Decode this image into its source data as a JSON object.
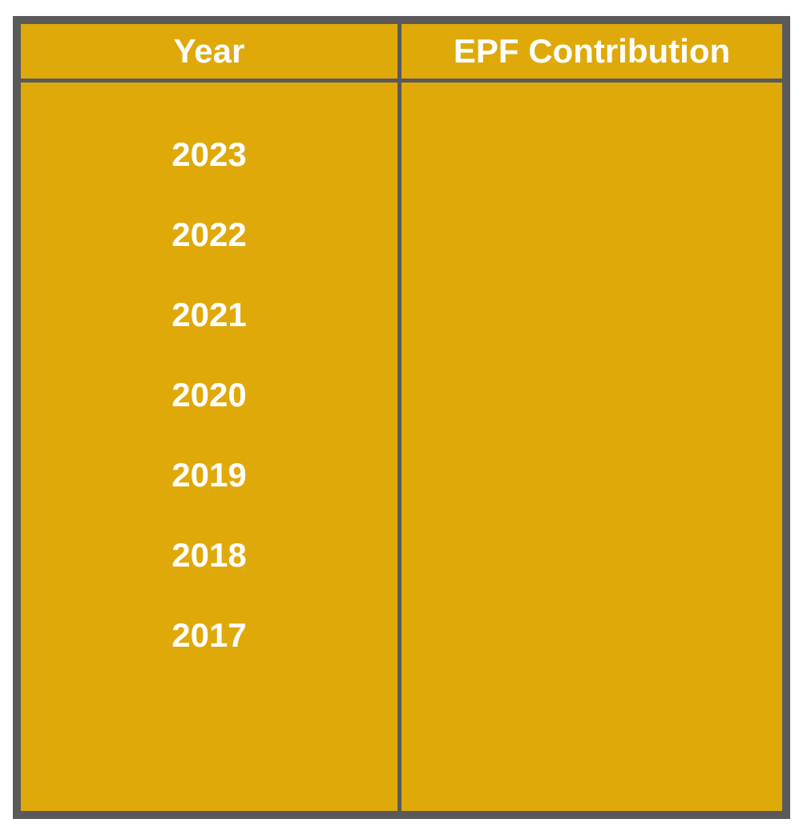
{
  "table": {
    "headers": {
      "year": "Year",
      "epf_contribution": "EPF Contribution"
    },
    "rows": [
      {
        "year": "2023",
        "epf_contribution": ""
      },
      {
        "year": "2022",
        "epf_contribution": ""
      },
      {
        "year": "2021",
        "epf_contribution": ""
      },
      {
        "year": "2020",
        "epf_contribution": ""
      },
      {
        "year": "2019",
        "epf_contribution": ""
      },
      {
        "year": "2018",
        "epf_contribution": ""
      },
      {
        "year": "2017",
        "epf_contribution": ""
      }
    ]
  },
  "colors": {
    "fill": "#dfa909",
    "border": "#5a5a5a",
    "text": "#ffffff"
  }
}
